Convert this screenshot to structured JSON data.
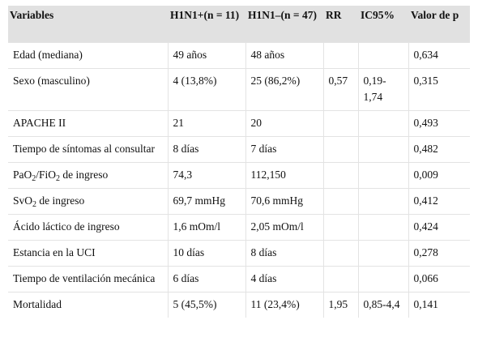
{
  "headers": [
    "Variables",
    "H1N1+(n = 11)",
    "H1N1–(n = 47)",
    "RR",
    "IC95%",
    "Valor de p"
  ],
  "rows": [
    {
      "variable": {
        "text": "Edad (mediana)"
      },
      "pos": "49 años",
      "neg": "48 años",
      "rr": "",
      "ic": "",
      "p": "0,634"
    },
    {
      "variable": {
        "text": "Sexo (masculino)"
      },
      "pos": "4 (13,8%)",
      "neg": "25 (86,2%)",
      "rr": "0,57",
      "ic": "0,19-1,74",
      "p": "0,315"
    },
    {
      "variable": {
        "text": "APACHE II"
      },
      "pos": "21",
      "neg": "20",
      "rr": "",
      "ic": "",
      "p": "0,493"
    },
    {
      "variable": {
        "text": "Tiempo de síntomas al consultar"
      },
      "pos": "8 días",
      "neg": "7 días",
      "rr": "",
      "ic": "",
      "p": "0,482"
    },
    {
      "variable": {
        "a": "PaO",
        "a_sub": "2",
        "b": "/FiO",
        "b_sub": "2",
        "c": " de ingreso"
      },
      "pos": "74,3",
      "neg": "112,150",
      "rr": "",
      "ic": "",
      "p": "0,009"
    },
    {
      "variable": {
        "a": "SvO",
        "a_sub": "2",
        "c": " de ingreso"
      },
      "pos": "69,7 mmHg",
      "neg": "70,6 mmHg",
      "rr": "",
      "ic": "",
      "p": "0,412"
    },
    {
      "variable": {
        "text": "Ácido láctico de ingreso"
      },
      "pos": "1,6 mOm/l",
      "neg": "2,05 mOm/l",
      "rr": "",
      "ic": "",
      "p": "0,424"
    },
    {
      "variable": {
        "text": "Estancia en la UCI"
      },
      "pos": "10 días",
      "neg": "8 días",
      "rr": "",
      "ic": "",
      "p": "0,278"
    },
    {
      "variable": {
        "text": "Tiempo de ventilación mecánica"
      },
      "pos": "6 días",
      "neg": "4 días",
      "rr": "",
      "ic": "",
      "p": "0,066"
    },
    {
      "variable": {
        "text": "Mortalidad"
      },
      "pos": "5 (45,5%)",
      "neg": "11 (23,4%)",
      "rr": "1,95",
      "ic": "0,85-4,4",
      "p": "0,141"
    }
  ]
}
